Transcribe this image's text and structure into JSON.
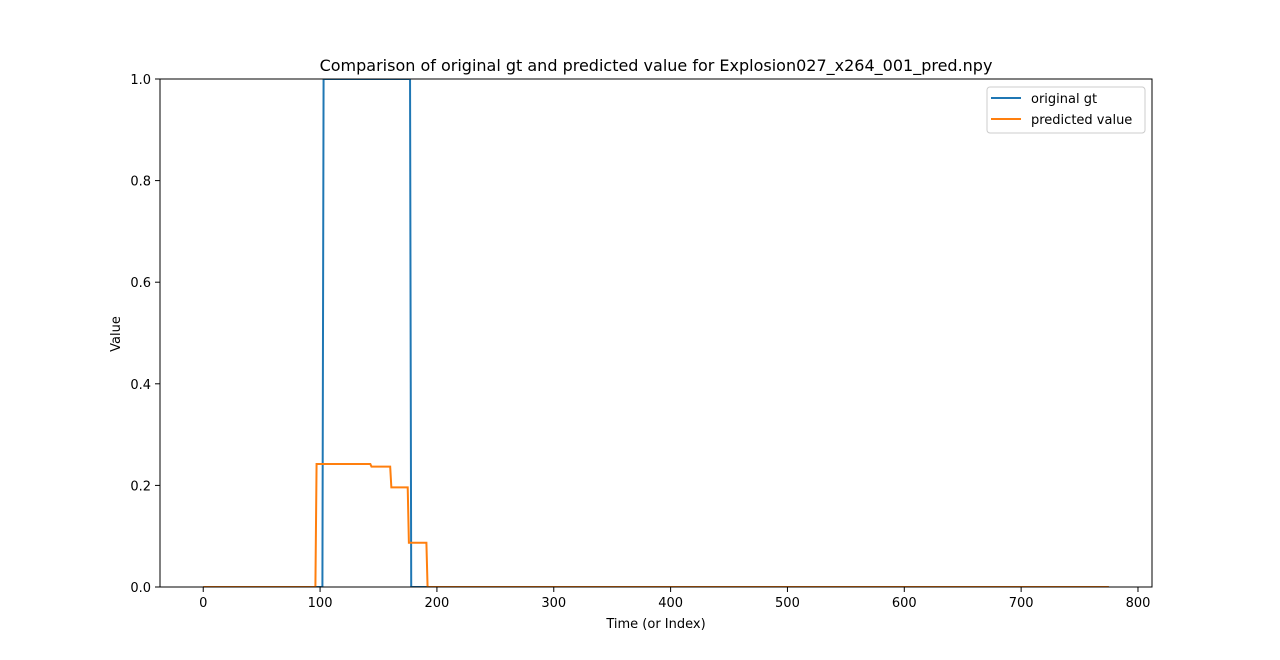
{
  "chart_data": {
    "type": "line",
    "title": "Comparison of original gt and predicted value for Explosion027_x264_001_pred.npy",
    "xlabel": "Time (or Index)",
    "ylabel": "Value",
    "xlim": [
      -37,
      812
    ],
    "ylim": [
      0.0,
      1.0
    ],
    "xticks": [
      0,
      100,
      200,
      300,
      400,
      500,
      600,
      700,
      800
    ],
    "yticks": [
      0.0,
      0.2,
      0.4,
      0.6,
      0.8,
      1.0
    ],
    "xtick_labels": [
      "0",
      "100",
      "200",
      "300",
      "400",
      "500",
      "600",
      "700",
      "800"
    ],
    "ytick_labels": [
      "0.0",
      "0.2",
      "0.4",
      "0.6",
      "0.8",
      "1.0"
    ],
    "grid": false,
    "legend_position": "top-right",
    "series": [
      {
        "name": "original gt",
        "color": "#1f77b4",
        "x": [
          0,
          102,
          103,
          177,
          178,
          775
        ],
        "y": [
          0,
          0,
          1,
          1,
          0,
          0
        ]
      },
      {
        "name": "predicted value",
        "color": "#ff7f0e",
        "x": [
          0,
          96,
          97,
          143,
          144,
          160,
          161,
          175,
          176,
          191,
          192,
          775
        ],
        "y": [
          0,
          0,
          0.242,
          0.242,
          0.237,
          0.237,
          0.196,
          0.196,
          0.087,
          0.087,
          0,
          0
        ]
      }
    ]
  }
}
